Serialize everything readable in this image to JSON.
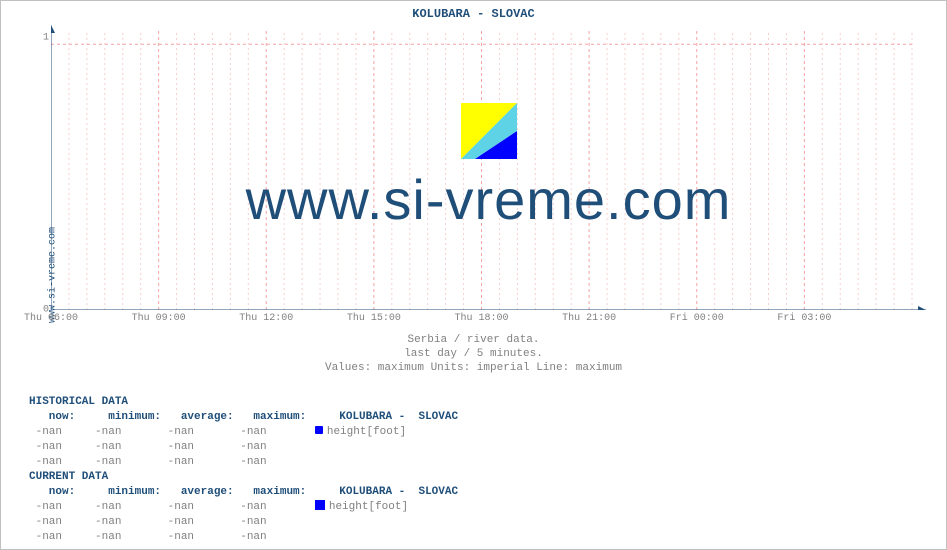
{
  "chart": {
    "title": "KOLUBARA -  SLOVAC",
    "ylabel_left": "www.si-vreme.com",
    "type": "line",
    "xlim": [
      0,
      24
    ],
    "ylim": [
      0,
      1.05
    ],
    "yticks": [
      0,
      1
    ],
    "ytick_labels": [
      "0",
      "1"
    ],
    "xticks_major": [
      0,
      3,
      6,
      9,
      12,
      15,
      18,
      21
    ],
    "xtick_labels": [
      "Thu 06:00",
      "Thu 09:00",
      "Thu 12:00",
      "Thu 15:00",
      "Thu 18:00",
      "Thu 21:00",
      "Fri 00:00",
      "Fri 03:00"
    ],
    "xticks_minor_step": 0.5,
    "background_color": "#ffffff",
    "axis_color": "#1f4e79",
    "major_grid_color": "#f5a3a3",
    "minor_grid_color": "#f8cfcf",
    "major_grid_dash": "3,3",
    "minor_grid_dash": "2,3",
    "arrowheads": true,
    "watermark_text": "www.si-vreme.com",
    "watermark_color": "#1f4e79",
    "logo_colors": {
      "yellow": "#ffff00",
      "cyan": "#5fd3e6",
      "blue": "#0000ff"
    }
  },
  "subtitle": {
    "line1": "Serbia / river data.",
    "line2": "last day / 5 minutes.",
    "line3": "Values: maximum  Units: imperial  Line: maximum"
  },
  "tables": {
    "historical": {
      "title": "HISTORICAL DATA",
      "headers": [
        "now:",
        "minimum:",
        "average:",
        "maximum:"
      ],
      "series_label": "KOLUBARA -  SLOVAC",
      "unit_label": "height[foot]",
      "rows": [
        [
          "-nan",
          "-nan",
          "-nan",
          "-nan"
        ],
        [
          "-nan",
          "-nan",
          "-nan",
          "-nan"
        ],
        [
          "-nan",
          "-nan",
          "-nan",
          "-nan"
        ]
      ],
      "marker_color": "#0000ff"
    },
    "current": {
      "title": "CURRENT DATA",
      "headers": [
        "now:",
        "minimum:",
        "average:",
        "maximum:"
      ],
      "series_label": "KOLUBARA -  SLOVAC",
      "unit_label": "height[foot]",
      "rows": [
        [
          "-nan",
          "-nan",
          "-nan",
          "-nan"
        ],
        [
          "-nan",
          "-nan",
          "-nan",
          "-nan"
        ],
        [
          "-nan",
          "-nan",
          "-nan",
          "-nan"
        ]
      ],
      "marker_color": "#0000ff"
    }
  }
}
